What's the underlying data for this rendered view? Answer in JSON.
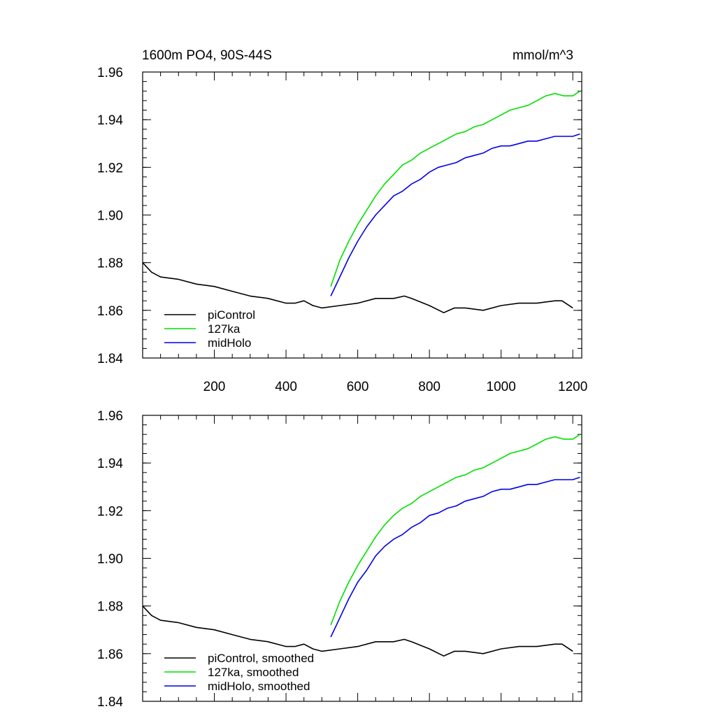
{
  "header": {
    "title": "1600m PO4, 90S-44S",
    "units": "mmol/m^3"
  },
  "colors": {
    "piControl": "#000000",
    "127ka": "#00e000",
    "midHolo": "#0000e8",
    "axis": "#000000",
    "background": "#ffffff"
  },
  "chart_data": [
    {
      "type": "line",
      "title": "1600m PO4, 90S-44S",
      "units": "mmol/m^3",
      "xlim": [
        0,
        1225
      ],
      "ylim": [
        1.84,
        1.96
      ],
      "x_ticks": [
        200,
        400,
        600,
        800,
        1000,
        1200
      ],
      "x_tick_labels": [
        "200",
        "400",
        "600",
        "800",
        "1000",
        "1200"
      ],
      "y_ticks": [
        1.84,
        1.86,
        1.88,
        1.9,
        1.92,
        1.94,
        1.96
      ],
      "y_tick_labels": [
        "1.84",
        "1.86",
        "1.88",
        "1.90",
        "1.92",
        "1.94",
        "1.96"
      ],
      "legend_position": "bottom-left",
      "series": [
        {
          "name": "piControl",
          "color_key": "piControl",
          "x": [
            0,
            25,
            50,
            100,
            150,
            200,
            250,
            300,
            350,
            400,
            425,
            450,
            475,
            500,
            550,
            600,
            650,
            700,
            730,
            750,
            800,
            840,
            870,
            900,
            950,
            1000,
            1050,
            1100,
            1150,
            1170,
            1200
          ],
          "y": [
            1.88,
            1.876,
            1.874,
            1.873,
            1.871,
            1.87,
            1.868,
            1.866,
            1.865,
            1.863,
            1.863,
            1.864,
            1.862,
            1.861,
            1.862,
            1.863,
            1.865,
            1.865,
            1.866,
            1.865,
            1.862,
            1.859,
            1.861,
            1.861,
            1.86,
            1.862,
            1.863,
            1.863,
            1.864,
            1.864,
            1.861
          ]
        },
        {
          "name": "127ka",
          "color_key": "127ka",
          "x": [
            525,
            550,
            575,
            600,
            625,
            650,
            675,
            700,
            725,
            750,
            775,
            800,
            825,
            850,
            875,
            900,
            925,
            950,
            975,
            1000,
            1025,
            1050,
            1075,
            1100,
            1125,
            1150,
            1175,
            1200,
            1220
          ],
          "y": [
            1.87,
            1.881,
            1.889,
            1.896,
            1.902,
            1.908,
            1.913,
            1.917,
            1.921,
            1.923,
            1.926,
            1.928,
            1.93,
            1.932,
            1.934,
            1.935,
            1.937,
            1.938,
            1.94,
            1.942,
            1.944,
            1.945,
            1.946,
            1.948,
            1.95,
            1.951,
            1.95,
            1.95,
            1.952
          ]
        },
        {
          "name": "midHolo",
          "color_key": "midHolo",
          "x": [
            525,
            550,
            575,
            600,
            625,
            650,
            675,
            700,
            725,
            750,
            775,
            800,
            825,
            850,
            875,
            900,
            925,
            950,
            975,
            1000,
            1025,
            1050,
            1075,
            1100,
            1125,
            1150,
            1175,
            1200,
            1220
          ],
          "y": [
            1.866,
            1.874,
            1.882,
            1.889,
            1.895,
            1.9,
            1.904,
            1.908,
            1.91,
            1.913,
            1.915,
            1.918,
            1.92,
            1.921,
            1.922,
            1.924,
            1.925,
            1.926,
            1.928,
            1.929,
            1.929,
            1.93,
            1.931,
            1.931,
            1.932,
            1.933,
            1.933,
            1.933,
            1.934
          ]
        }
      ]
    },
    {
      "type": "line",
      "xlim": [
        0,
        1225
      ],
      "ylim": [
        1.84,
        1.96
      ],
      "x_ticks": [
        200,
        400,
        600,
        800,
        1000,
        1200
      ],
      "y_ticks": [
        1.84,
        1.86,
        1.88,
        1.9,
        1.92,
        1.94,
        1.96
      ],
      "y_tick_labels": [
        "1.84",
        "1.86",
        "1.88",
        "1.90",
        "1.92",
        "1.94",
        "1.96"
      ],
      "legend_position": "bottom-left",
      "series": [
        {
          "name": "piControl, smoothed",
          "color_key": "piControl",
          "x": [
            0,
            25,
            50,
            100,
            150,
            200,
            250,
            300,
            350,
            400,
            425,
            450,
            475,
            500,
            550,
            600,
            650,
            700,
            730,
            750,
            800,
            840,
            870,
            900,
            950,
            1000,
            1050,
            1100,
            1150,
            1170,
            1200
          ],
          "y": [
            1.88,
            1.876,
            1.874,
            1.873,
            1.871,
            1.87,
            1.868,
            1.866,
            1.865,
            1.863,
            1.863,
            1.864,
            1.862,
            1.861,
            1.862,
            1.863,
            1.865,
            1.865,
            1.866,
            1.865,
            1.862,
            1.859,
            1.861,
            1.861,
            1.86,
            1.862,
            1.863,
            1.863,
            1.864,
            1.864,
            1.861
          ]
        },
        {
          "name": "127ka, smoothed",
          "color_key": "127ka",
          "x": [
            525,
            550,
            575,
            600,
            625,
            650,
            675,
            700,
            725,
            750,
            775,
            800,
            825,
            850,
            875,
            900,
            925,
            950,
            975,
            1000,
            1025,
            1050,
            1075,
            1100,
            1125,
            1150,
            1175,
            1200,
            1220
          ],
          "y": [
            1.872,
            1.882,
            1.89,
            1.897,
            1.903,
            1.909,
            1.914,
            1.918,
            1.921,
            1.923,
            1.926,
            1.928,
            1.93,
            1.932,
            1.934,
            1.935,
            1.937,
            1.938,
            1.94,
            1.942,
            1.944,
            1.945,
            1.946,
            1.948,
            1.95,
            1.951,
            1.95,
            1.95,
            1.952
          ]
        },
        {
          "name": "midHolo, smoothed",
          "color_key": "midHolo",
          "x": [
            525,
            550,
            575,
            600,
            625,
            650,
            675,
            700,
            725,
            750,
            775,
            800,
            825,
            850,
            875,
            900,
            925,
            950,
            975,
            1000,
            1025,
            1050,
            1075,
            1100,
            1125,
            1150,
            1175,
            1200,
            1220
          ],
          "y": [
            1.867,
            1.875,
            1.883,
            1.89,
            1.895,
            1.901,
            1.905,
            1.908,
            1.91,
            1.913,
            1.915,
            1.918,
            1.919,
            1.921,
            1.922,
            1.924,
            1.925,
            1.926,
            1.928,
            1.929,
            1.929,
            1.93,
            1.931,
            1.931,
            1.932,
            1.933,
            1.933,
            1.933,
            1.934
          ]
        }
      ]
    }
  ]
}
